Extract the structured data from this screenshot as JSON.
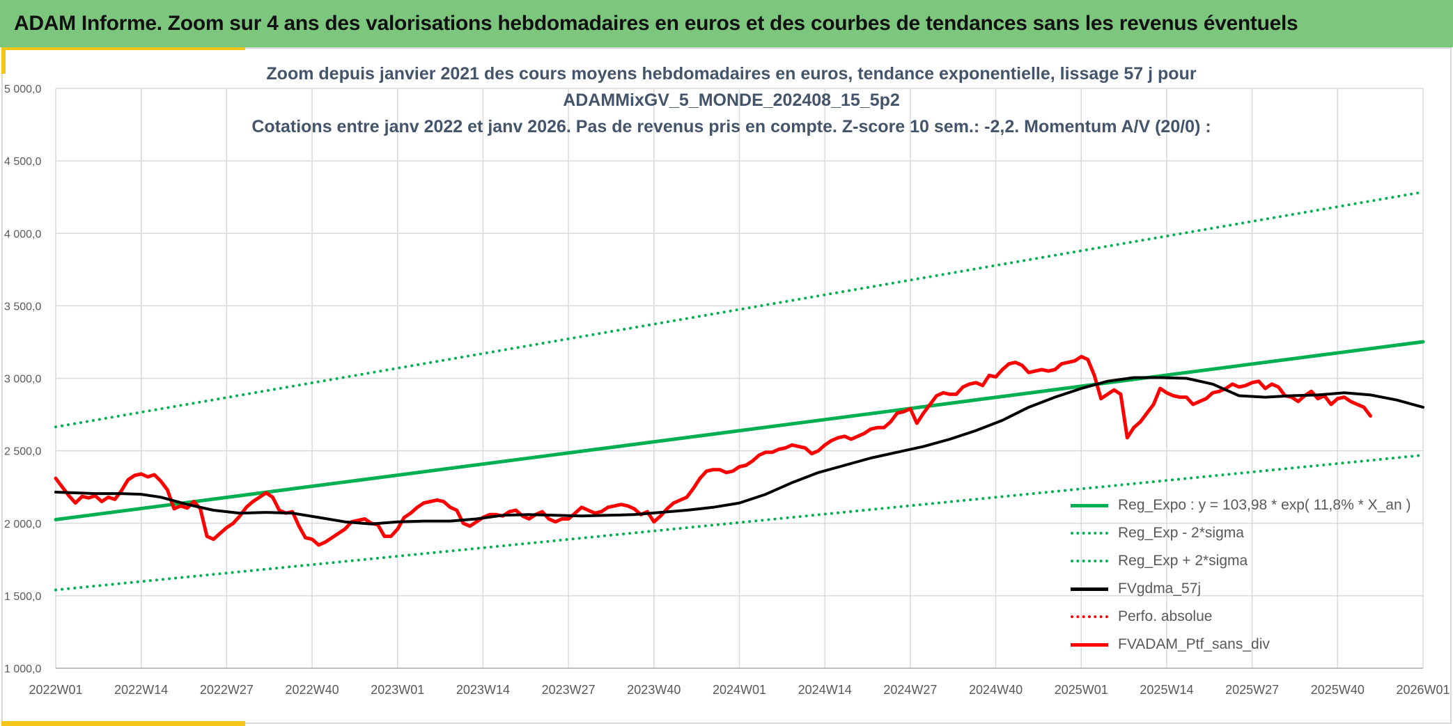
{
  "banner": {
    "title": "ADAM Informe. Zoom sur 4 ans des valorisations hebdomadaires en euros et des courbes de tendances sans les revenus éventuels"
  },
  "colors": {
    "banner": "#7dc67e",
    "accent": "#f5c518",
    "trend": "#00b050",
    "band": "#00b050",
    "smooth": "#000000",
    "price": "#ff0000",
    "perf": "#ff0000",
    "grid": "#d9d9d9",
    "title": "#44546a"
  },
  "chart_data": {
    "type": "line",
    "title_lines": [
      "Zoom depuis janvier 2021 des cours moyens hebdomadaires en euros, tendance exponentielle, lissage 57 j pour",
      "ADAMMixGV_5_MONDE_202408_15_5p2",
      "Cotations entre janv 2022 et janv 2026. Pas de revenus pris en compte. Z-score 10 sem.: -2,2. Momentum A/V (20/0) :"
    ],
    "ylim": [
      1000,
      5000
    ],
    "y_ticks": [
      1000,
      1500,
      2000,
      2500,
      3000,
      3500,
      4000,
      4500,
      5000
    ],
    "y_tick_labels": [
      "1 000,0",
      "1 500,0",
      "2 000,0",
      "2 500,0",
      "3 000,0",
      "3 500,0",
      "4 000,0",
      "4 500,0",
      "5 000,0"
    ],
    "x_range_weeks": [
      0,
      208
    ],
    "x_tick_labels": [
      "2022W01",
      "2022W14",
      "2022W27",
      "2022W40",
      "2023W01",
      "2023W14",
      "2023W27",
      "2023W40",
      "2024W01",
      "2024W14",
      "2024W27",
      "2024W40",
      "2025W01",
      "2025W14",
      "2025W27",
      "2025W40",
      "2026W01"
    ],
    "x_tick_step_weeks": 13,
    "grid": true,
    "legend_position": "bottom-right",
    "series": [
      {
        "name": "Reg_Expo : y = 103,98 * exp( 11,8% *  X_an )",
        "style": "solid",
        "color": "#00b050",
        "width": 5,
        "points": [
          [
            0,
            2025
          ],
          [
            208,
            3252
          ]
        ]
      },
      {
        "name": "Reg_Exp - 2*sigma",
        "style": "dotted",
        "color": "#00b050",
        "width": 4,
        "points": [
          [
            0,
            1540
          ],
          [
            208,
            2470
          ]
        ]
      },
      {
        "name": "Reg_Exp + 2*sigma",
        "style": "dotted",
        "color": "#00b050",
        "width": 4,
        "points": [
          [
            0,
            2665
          ],
          [
            208,
            4285
          ]
        ]
      },
      {
        "name": "FVgdma_57j",
        "style": "solid",
        "color": "#000000",
        "width": 4,
        "points": [
          [
            0,
            2215
          ],
          [
            6,
            2205
          ],
          [
            10,
            2205
          ],
          [
            13,
            2200
          ],
          [
            16,
            2180
          ],
          [
            20,
            2130
          ],
          [
            24,
            2090
          ],
          [
            28,
            2070
          ],
          [
            32,
            2075
          ],
          [
            36,
            2070
          ],
          [
            40,
            2040
          ],
          [
            44,
            2010
          ],
          [
            48,
            1995
          ],
          [
            52,
            2010
          ],
          [
            56,
            2015
          ],
          [
            60,
            2015
          ],
          [
            64,
            2030
          ],
          [
            68,
            2055
          ],
          [
            72,
            2060
          ],
          [
            76,
            2055
          ],
          [
            80,
            2050
          ],
          [
            84,
            2055
          ],
          [
            88,
            2060
          ],
          [
            92,
            2075
          ],
          [
            96,
            2090
          ],
          [
            100,
            2110
          ],
          [
            104,
            2140
          ],
          [
            108,
            2200
          ],
          [
            112,
            2280
          ],
          [
            116,
            2350
          ],
          [
            120,
            2400
          ],
          [
            124,
            2450
          ],
          [
            128,
            2490
          ],
          [
            132,
            2530
          ],
          [
            136,
            2580
          ],
          [
            140,
            2640
          ],
          [
            144,
            2710
          ],
          [
            148,
            2800
          ],
          [
            152,
            2870
          ],
          [
            156,
            2930
          ],
          [
            160,
            2980
          ],
          [
            164,
            3005
          ],
          [
            168,
            3005
          ],
          [
            172,
            3000
          ],
          [
            176,
            2960
          ],
          [
            180,
            2880
          ],
          [
            184,
            2870
          ],
          [
            188,
            2880
          ],
          [
            192,
            2885
          ],
          [
            196,
            2900
          ],
          [
            200,
            2885
          ],
          [
            204,
            2850
          ],
          [
            208,
            2800
          ]
        ]
      },
      {
        "name": "Perfo. absolue",
        "style": "dotted",
        "color": "#ff0000",
        "width": 4,
        "points": []
      },
      {
        "name": "FVADAM_Ptf_sans_div",
        "style": "solid",
        "color": "#ff0000",
        "width": 5,
        "points": [
          [
            0,
            2310
          ],
          [
            1,
            2250
          ],
          [
            2,
            2190
          ],
          [
            3,
            2140
          ],
          [
            4,
            2185
          ],
          [
            5,
            2175
          ],
          [
            6,
            2190
          ],
          [
            7,
            2150
          ],
          [
            8,
            2180
          ],
          [
            9,
            2165
          ],
          [
            10,
            2225
          ],
          [
            11,
            2300
          ],
          [
            12,
            2330
          ],
          [
            13,
            2340
          ],
          [
            14,
            2320
          ],
          [
            15,
            2335
          ],
          [
            16,
            2290
          ],
          [
            17,
            2230
          ],
          [
            18,
            2100
          ],
          [
            19,
            2120
          ],
          [
            20,
            2105
          ],
          [
            21,
            2150
          ],
          [
            22,
            2100
          ],
          [
            23,
            1910
          ],
          [
            24,
            1890
          ],
          [
            25,
            1930
          ],
          [
            26,
            1970
          ],
          [
            27,
            2000
          ],
          [
            28,
            2050
          ],
          [
            29,
            2110
          ],
          [
            30,
            2150
          ],
          [
            31,
            2180
          ],
          [
            32,
            2210
          ],
          [
            33,
            2180
          ],
          [
            34,
            2090
          ],
          [
            35,
            2070
          ],
          [
            36,
            2080
          ],
          [
            37,
            1980
          ],
          [
            38,
            1900
          ],
          [
            39,
            1890
          ],
          [
            40,
            1850
          ],
          [
            41,
            1870
          ],
          [
            42,
            1900
          ],
          [
            43,
            1930
          ],
          [
            44,
            1960
          ],
          [
            45,
            2010
          ],
          [
            46,
            2020
          ],
          [
            47,
            2030
          ],
          [
            48,
            2000
          ],
          [
            49,
            1990
          ],
          [
            50,
            1910
          ],
          [
            51,
            1910
          ],
          [
            52,
            1960
          ],
          [
            53,
            2040
          ],
          [
            54,
            2070
          ],
          [
            55,
            2110
          ],
          [
            56,
            2140
          ],
          [
            57,
            2150
          ],
          [
            58,
            2160
          ],
          [
            59,
            2150
          ],
          [
            60,
            2110
          ],
          [
            61,
            2090
          ],
          [
            62,
            2000
          ],
          [
            63,
            1980
          ],
          [
            64,
            2010
          ],
          [
            65,
            2040
          ],
          [
            66,
            2060
          ],
          [
            67,
            2060
          ],
          [
            68,
            2050
          ],
          [
            69,
            2080
          ],
          [
            70,
            2090
          ],
          [
            71,
            2050
          ],
          [
            72,
            2030
          ],
          [
            73,
            2060
          ],
          [
            74,
            2080
          ],
          [
            75,
            2030
          ],
          [
            76,
            2010
          ],
          [
            77,
            2030
          ],
          [
            78,
            2030
          ],
          [
            79,
            2070
          ],
          [
            80,
            2110
          ],
          [
            81,
            2090
          ],
          [
            82,
            2070
          ],
          [
            83,
            2080
          ],
          [
            84,
            2110
          ],
          [
            85,
            2120
          ],
          [
            86,
            2130
          ],
          [
            87,
            2120
          ],
          [
            88,
            2100
          ],
          [
            89,
            2060
          ],
          [
            90,
            2080
          ],
          [
            91,
            2010
          ],
          [
            92,
            2050
          ],
          [
            93,
            2100
          ],
          [
            94,
            2140
          ],
          [
            95,
            2160
          ],
          [
            96,
            2180
          ],
          [
            97,
            2240
          ],
          [
            98,
            2310
          ],
          [
            99,
            2360
          ],
          [
            100,
            2370
          ],
          [
            101,
            2370
          ],
          [
            102,
            2350
          ],
          [
            103,
            2360
          ],
          [
            104,
            2390
          ],
          [
            105,
            2400
          ],
          [
            106,
            2430
          ],
          [
            107,
            2470
          ],
          [
            108,
            2490
          ],
          [
            109,
            2490
          ],
          [
            110,
            2510
          ],
          [
            111,
            2520
          ],
          [
            112,
            2540
          ],
          [
            113,
            2530
          ],
          [
            114,
            2520
          ],
          [
            115,
            2480
          ],
          [
            116,
            2500
          ],
          [
            117,
            2540
          ],
          [
            118,
            2570
          ],
          [
            119,
            2590
          ],
          [
            120,
            2600
          ],
          [
            121,
            2580
          ],
          [
            122,
            2600
          ],
          [
            123,
            2620
          ],
          [
            124,
            2650
          ],
          [
            125,
            2660
          ],
          [
            126,
            2660
          ],
          [
            127,
            2700
          ],
          [
            128,
            2760
          ],
          [
            129,
            2770
          ],
          [
            130,
            2790
          ],
          [
            131,
            2690
          ],
          [
            132,
            2760
          ],
          [
            133,
            2820
          ],
          [
            134,
            2880
          ],
          [
            135,
            2900
          ],
          [
            136,
            2890
          ],
          [
            137,
            2890
          ],
          [
            138,
            2940
          ],
          [
            139,
            2960
          ],
          [
            140,
            2970
          ],
          [
            141,
            2950
          ],
          [
            142,
            3020
          ],
          [
            143,
            3010
          ],
          [
            144,
            3060
          ],
          [
            145,
            3100
          ],
          [
            146,
            3110
          ],
          [
            147,
            3090
          ],
          [
            148,
            3040
          ],
          [
            149,
            3050
          ],
          [
            150,
            3060
          ],
          [
            151,
            3050
          ],
          [
            152,
            3060
          ],
          [
            153,
            3100
          ],
          [
            154,
            3110
          ],
          [
            155,
            3120
          ],
          [
            156,
            3150
          ],
          [
            157,
            3130
          ],
          [
            158,
            3020
          ],
          [
            159,
            2860
          ],
          [
            160,
            2890
          ],
          [
            161,
            2920
          ],
          [
            162,
            2890
          ],
          [
            163,
            2590
          ],
          [
            164,
            2660
          ],
          [
            165,
            2700
          ],
          [
            166,
            2760
          ],
          [
            167,
            2820
          ],
          [
            168,
            2930
          ],
          [
            169,
            2900
          ],
          [
            170,
            2880
          ],
          [
            171,
            2870
          ],
          [
            172,
            2870
          ],
          [
            173,
            2820
          ],
          [
            174,
            2840
          ],
          [
            175,
            2860
          ],
          [
            176,
            2900
          ],
          [
            177,
            2910
          ],
          [
            178,
            2930
          ],
          [
            179,
            2960
          ],
          [
            180,
            2940
          ],
          [
            181,
            2950
          ],
          [
            182,
            2970
          ],
          [
            183,
            2980
          ],
          [
            184,
            2930
          ],
          [
            185,
            2960
          ],
          [
            186,
            2940
          ],
          [
            187,
            2880
          ],
          [
            188,
            2870
          ],
          [
            189,
            2840
          ],
          [
            190,
            2880
          ],
          [
            191,
            2910
          ],
          [
            192,
            2860
          ],
          [
            193,
            2880
          ],
          [
            194,
            2820
          ],
          [
            195,
            2860
          ],
          [
            196,
            2870
          ],
          [
            197,
            2840
          ],
          [
            198,
            2820
          ],
          [
            199,
            2800
          ],
          [
            200,
            2740
          ]
        ]
      }
    ]
  }
}
